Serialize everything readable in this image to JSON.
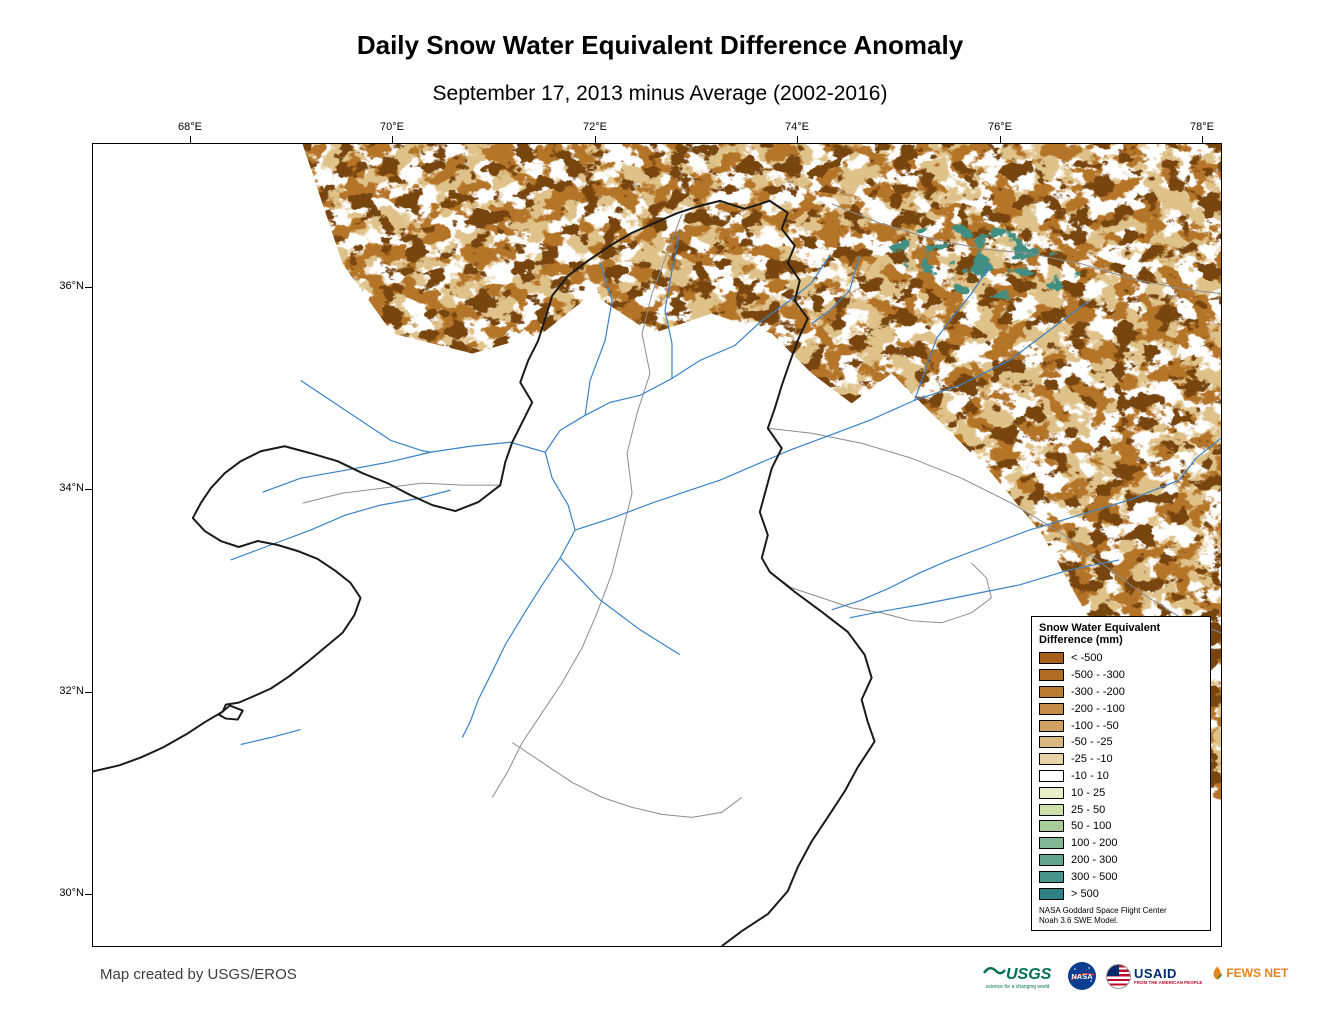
{
  "title": "Daily Snow Water Equivalent Difference Anomaly",
  "subtitle": "September 17, 2013 minus Average (2002-2016)",
  "map": {
    "lon_ticks": [
      "68°E",
      "70°E",
      "72°E",
      "74°E",
      "76°E",
      "78°E"
    ],
    "lat_ticks": [
      "36°N",
      "34°N",
      "32°N",
      "30°N"
    ],
    "colors": {
      "river": "#3b82c8",
      "basin_boundary": "#1a1a1a",
      "subbasin_boundary": "#8c8c8c",
      "background": "#ffffff"
    }
  },
  "legend": {
    "title_line1": "Snow Water Equivalent",
    "title_line2": "Difference (mm)",
    "classes": [
      {
        "label": "< -500",
        "color": "#a6601c"
      },
      {
        "label": "-500 - -300",
        "color": "#b06d26"
      },
      {
        "label": "-300 - -200",
        "color": "#ba7c33"
      },
      {
        "label": "-200 - -100",
        "color": "#c48d47"
      },
      {
        "label": "-100 - -50",
        "color": "#cfa263"
      },
      {
        "label": "-50 - -25",
        "color": "#dab983"
      },
      {
        "label": "-25 - -10",
        "color": "#e8d3a6"
      },
      {
        "label": "-10 - 10",
        "color": "#ffffff"
      },
      {
        "label": "10 - 25",
        "color": "#e9efc9"
      },
      {
        "label": "25 - 50",
        "color": "#cfe0ad"
      },
      {
        "label": "50 - 100",
        "color": "#abcd9c"
      },
      {
        "label": "100 - 200",
        "color": "#82b795"
      },
      {
        "label": "200 - 300",
        "color": "#62a690"
      },
      {
        "label": "300 - 500",
        "color": "#47958b"
      },
      {
        "label": "> 500",
        "color": "#2f8184"
      }
    ],
    "footnote_line1": "NASA Goddard Space Flight Center",
    "footnote_line2": "Noah 3.6 SWE Model."
  },
  "credit": "Map created by USGS/EROS",
  "logos": {
    "usgs": {
      "label": "USGS",
      "tagline": "science for a changing world"
    },
    "nasa": {
      "label": "NASA"
    },
    "usaid": {
      "label": "USAID",
      "tagline": "FROM THE AMERICAN PEOPLE"
    },
    "fewsnet": {
      "label": "FEWS NET"
    }
  }
}
